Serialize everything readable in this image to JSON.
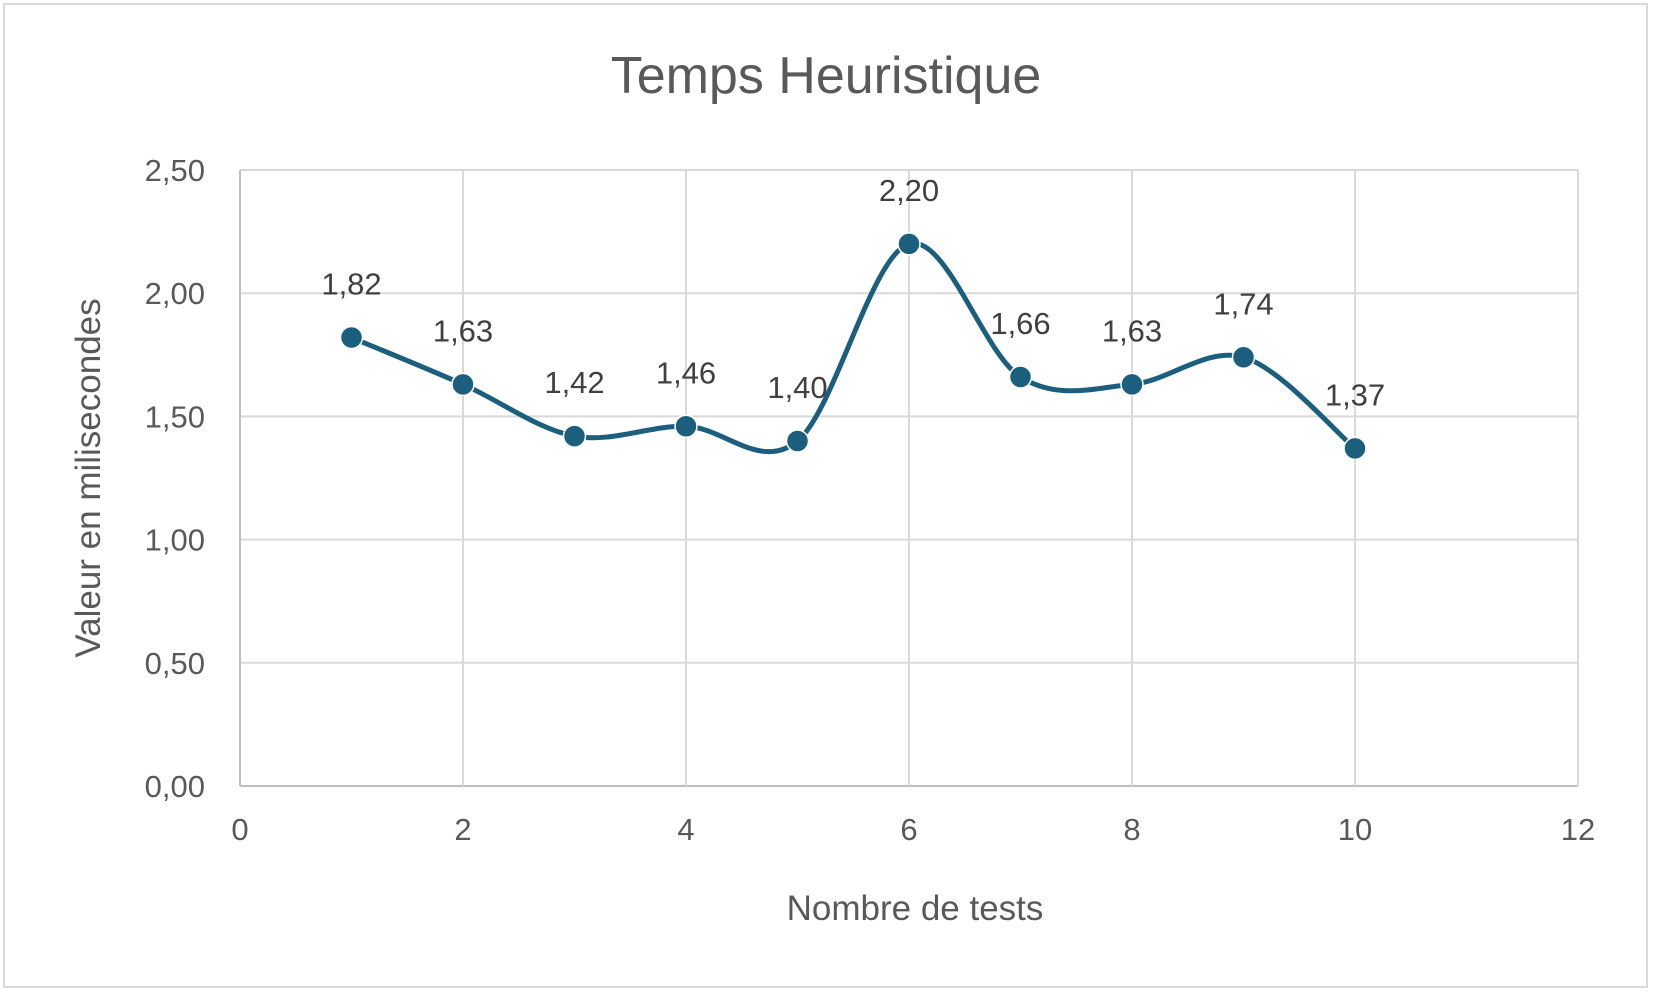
{
  "chart_data": {
    "type": "scatter",
    "title": "Temps Heuristique",
    "xlabel": "Nombre de tests",
    "ylabel": "Valeur en milisecondes",
    "xlim": [
      0,
      12
    ],
    "ylim": [
      0,
      2.5
    ],
    "x_ticks": [
      0,
      2,
      4,
      6,
      8,
      10,
      12
    ],
    "y_ticks": [
      0,
      0.5,
      1.0,
      1.5,
      2.0,
      2.5
    ],
    "x_tick_labels": [
      "0",
      "2",
      "4",
      "6",
      "8",
      "10",
      "12"
    ],
    "y_tick_labels": [
      "0,00",
      "0,50",
      "1,00",
      "1,50",
      "2,00",
      "2,50"
    ],
    "grid": true,
    "smooth_line": true,
    "series": [
      {
        "x": [
          1,
          2,
          3,
          4,
          5,
          6,
          7,
          8,
          9,
          10
        ],
        "y": [
          1.82,
          1.63,
          1.42,
          1.46,
          1.4,
          2.2,
          1.66,
          1.63,
          1.74,
          1.37
        ],
        "labels": [
          "1,82",
          "1,63",
          "1,42",
          "1,46",
          "1,40",
          "2,20",
          "1,66",
          "1,63",
          "1,74",
          "1,37"
        ],
        "color": "#1b5e7e"
      }
    ]
  }
}
